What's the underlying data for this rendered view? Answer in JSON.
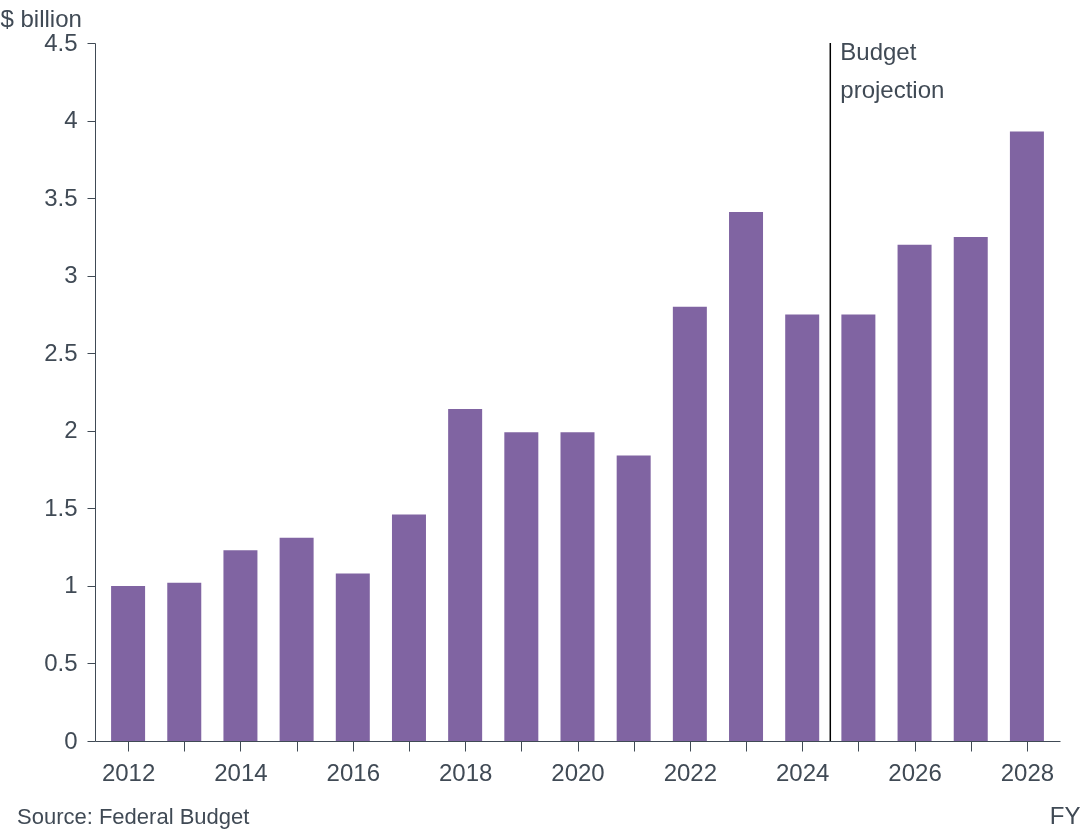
{
  "chart_data": {
    "type": "bar",
    "ylabel": "$ billion",
    "xlabel": "FY",
    "x": [
      2012,
      2013,
      2014,
      2015,
      2016,
      2017,
      2018,
      2019,
      2020,
      2021,
      2022,
      2023,
      2024,
      2025,
      2026,
      2027,
      2028
    ],
    "values": [
      1.0,
      1.02,
      1.23,
      1.31,
      1.08,
      1.46,
      2.14,
      1.99,
      1.99,
      1.84,
      2.8,
      3.41,
      2.75,
      2.75,
      3.2,
      3.25,
      3.93
    ],
    "color": "#8064a2",
    "xlim": [
      2011.5,
      2028.5
    ],
    "xticks": [
      2012,
      {
        "value": 2013,
        "label": null
      },
      2014,
      {
        "value": 2015,
        "label": null
      },
      2016,
      {
        "value": 2017,
        "label": null
      },
      2018,
      {
        "value": 2019,
        "label": null
      },
      2020,
      {
        "value": 2021,
        "label": null
      },
      2022,
      {
        "value": 2023,
        "label": null
      },
      2024,
      {
        "value": 2025,
        "label": null
      },
      2026,
      {
        "value": 2027,
        "label": null
      },
      2028
    ],
    "ylim": [
      0,
      4.5
    ],
    "yticks": [
      0,
      0.5,
      1,
      1.5,
      2,
      2.5,
      3,
      3.5,
      4,
      4.5
    ],
    "grid": false,
    "ref_lines": [
      {
        "axis": "x",
        "value": 2024.5,
        "label": "Budget projection",
        "color": "#000000"
      }
    ],
    "annotations": [
      "Source: Federal Budget"
    ]
  }
}
